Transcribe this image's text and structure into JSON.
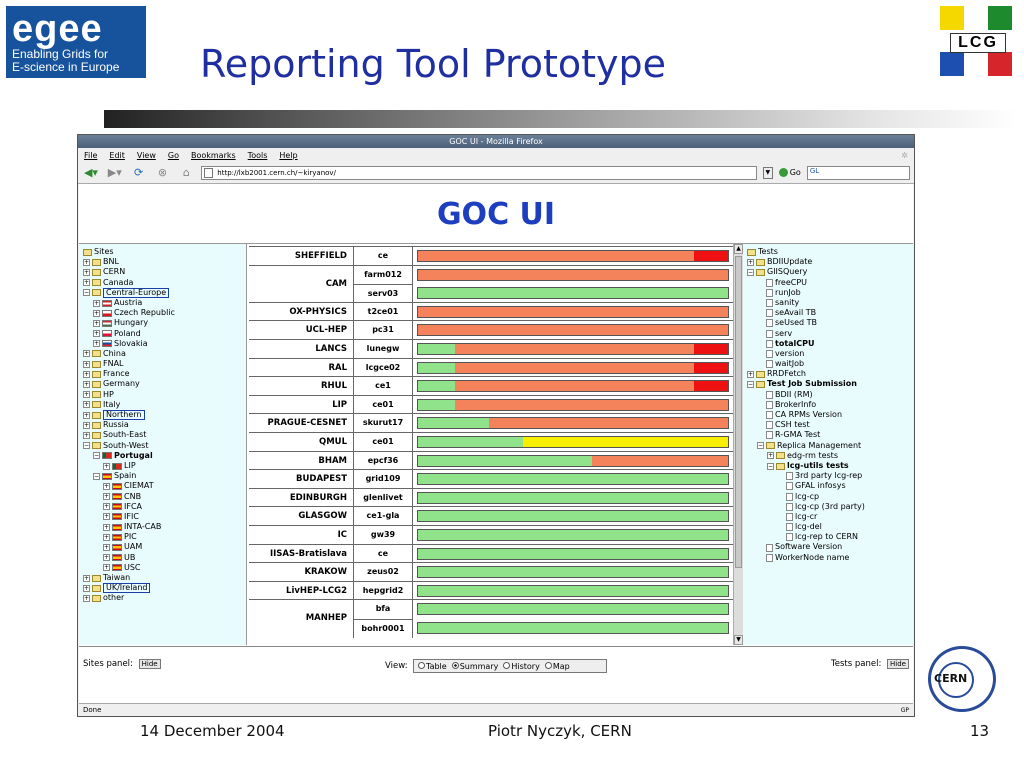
{
  "slide": {
    "egee_logo": {
      "word": "egee",
      "line1": "Enabling Grids for",
      "line2": "E-science in Europe"
    },
    "lcg_logo": "LCG",
    "title": "Reporting Tool Prototype",
    "footer_date": "14 December 2004",
    "footer_author": "Piotr Nyczyk, CERN",
    "footer_page": "13",
    "cern_logo": "CERN"
  },
  "browser": {
    "window_title": "GOC UI - Mozilla Firefox",
    "menu": [
      "File",
      "Edit",
      "View",
      "Go",
      "Bookmarks",
      "Tools",
      "Help"
    ],
    "url": "http://lxb2001.cern.ch/~kiryanov/",
    "go_label": "Go",
    "search_value": "GL",
    "status": "Done",
    "status_right": "GP"
  },
  "page": {
    "heading": "GOC UI",
    "sites_tree": [
      {
        "label": "Sites",
        "depth": 0,
        "exp": "",
        "icon": "folder"
      },
      {
        "label": "BNL",
        "depth": 0,
        "exp": "+",
        "icon": "folder"
      },
      {
        "label": "CERN",
        "depth": 0,
        "exp": "+",
        "icon": "folder"
      },
      {
        "label": "Canada",
        "depth": 0,
        "exp": "+",
        "icon": "folder"
      },
      {
        "label": "Central-Europe",
        "depth": 0,
        "exp": "-",
        "icon": "folder",
        "sel": true
      },
      {
        "label": "Austria",
        "depth": 1,
        "exp": "+",
        "icon": "flag-at"
      },
      {
        "label": "Czech Republic",
        "depth": 1,
        "exp": "+",
        "icon": "flag-cz"
      },
      {
        "label": "Hungary",
        "depth": 1,
        "exp": "+",
        "icon": "flag-hu"
      },
      {
        "label": "Poland",
        "depth": 1,
        "exp": "+",
        "icon": "flag-pl"
      },
      {
        "label": "Slovakia",
        "depth": 1,
        "exp": "+",
        "icon": "flag-sk"
      },
      {
        "label": "China",
        "depth": 0,
        "exp": "+",
        "icon": "folder"
      },
      {
        "label": "FNAL",
        "depth": 0,
        "exp": "+",
        "icon": "folder"
      },
      {
        "label": "France",
        "depth": 0,
        "exp": "+",
        "icon": "folder"
      },
      {
        "label": "Germany",
        "depth": 0,
        "exp": "+",
        "icon": "folder"
      },
      {
        "label": "HP",
        "depth": 0,
        "exp": "+",
        "icon": "folder"
      },
      {
        "label": "Italy",
        "depth": 0,
        "exp": "+",
        "icon": "folder"
      },
      {
        "label": "Northern",
        "depth": 0,
        "exp": "+",
        "icon": "folder",
        "sel": true
      },
      {
        "label": "Russia",
        "depth": 0,
        "exp": "+",
        "icon": "folder"
      },
      {
        "label": "South-East",
        "depth": 0,
        "exp": "+",
        "icon": "folder"
      },
      {
        "label": "South-West",
        "depth": 0,
        "exp": "-",
        "icon": "folder"
      },
      {
        "label": "Portugal",
        "depth": 1,
        "exp": "-",
        "icon": "flag-pt",
        "bold": true
      },
      {
        "label": "LIP",
        "depth": 2,
        "exp": "+",
        "icon": "flag-pt"
      },
      {
        "label": "Spain",
        "depth": 1,
        "exp": "-",
        "icon": "flag-es"
      },
      {
        "label": "CIEMAT",
        "depth": 2,
        "exp": "+",
        "icon": "flag-es"
      },
      {
        "label": "CNB",
        "depth": 2,
        "exp": "+",
        "icon": "flag-es"
      },
      {
        "label": "IFCA",
        "depth": 2,
        "exp": "+",
        "icon": "flag-es"
      },
      {
        "label": "IFIC",
        "depth": 2,
        "exp": "+",
        "icon": "flag-es"
      },
      {
        "label": "INTA-CAB",
        "depth": 2,
        "exp": "+",
        "icon": "flag-es"
      },
      {
        "label": "PIC",
        "depth": 2,
        "exp": "+",
        "icon": "flag-es"
      },
      {
        "label": "UAM",
        "depth": 2,
        "exp": "+",
        "icon": "flag-es"
      },
      {
        "label": "UB",
        "depth": 2,
        "exp": "+",
        "icon": "flag-es"
      },
      {
        "label": "USC",
        "depth": 2,
        "exp": "+",
        "icon": "flag-es"
      },
      {
        "label": "Taiwan",
        "depth": 0,
        "exp": "+",
        "icon": "folder"
      },
      {
        "label": "UK/Ireland",
        "depth": 0,
        "exp": "+",
        "icon": "folder",
        "sel": true
      },
      {
        "label": "other",
        "depth": 0,
        "exp": "+",
        "icon": "folder"
      }
    ],
    "tests_tree": [
      {
        "label": "Tests",
        "depth": 0,
        "exp": "",
        "icon": "folder"
      },
      {
        "label": "BDIIUpdate",
        "depth": 0,
        "exp": "+",
        "icon": "folder"
      },
      {
        "label": "GIISQuery",
        "depth": 0,
        "exp": "-",
        "icon": "folder"
      },
      {
        "label": "freeCPU",
        "depth": 1,
        "exp": "",
        "icon": "doc"
      },
      {
        "label": "runJob",
        "depth": 1,
        "exp": "",
        "icon": "doc"
      },
      {
        "label": "sanity",
        "depth": 1,
        "exp": "",
        "icon": "doc"
      },
      {
        "label": "seAvail TB",
        "depth": 1,
        "exp": "",
        "icon": "doc"
      },
      {
        "label": "seUsed TB",
        "depth": 1,
        "exp": "",
        "icon": "doc"
      },
      {
        "label": "serv",
        "depth": 1,
        "exp": "",
        "icon": "doc"
      },
      {
        "label": "totalCPU",
        "depth": 1,
        "exp": "",
        "icon": "doc",
        "bold": true
      },
      {
        "label": "version",
        "depth": 1,
        "exp": "",
        "icon": "doc"
      },
      {
        "label": "waitJob",
        "depth": 1,
        "exp": "",
        "icon": "doc"
      },
      {
        "label": "RRDFetch",
        "depth": 0,
        "exp": "+",
        "icon": "folder"
      },
      {
        "label": "Test Job Submission",
        "depth": 0,
        "exp": "-",
        "icon": "folder",
        "bold": true
      },
      {
        "label": "BDII (RM)",
        "depth": 1,
        "exp": "",
        "icon": "doc"
      },
      {
        "label": "BrokerInfo",
        "depth": 1,
        "exp": "",
        "icon": "doc"
      },
      {
        "label": "CA RPMs Version",
        "depth": 1,
        "exp": "",
        "icon": "doc"
      },
      {
        "label": "CSH test",
        "depth": 1,
        "exp": "",
        "icon": "doc"
      },
      {
        "label": "R-GMA Test",
        "depth": 1,
        "exp": "",
        "icon": "doc"
      },
      {
        "label": "Replica Management",
        "depth": 1,
        "exp": "-",
        "icon": "folder"
      },
      {
        "label": "edg-rm tests",
        "depth": 2,
        "exp": "+",
        "icon": "folder"
      },
      {
        "label": "lcg-utils tests",
        "depth": 2,
        "exp": "-",
        "icon": "folder",
        "bold": true
      },
      {
        "label": "3rd party lcg-rep",
        "depth": 3,
        "exp": "",
        "icon": "doc"
      },
      {
        "label": "GFAL infosys",
        "depth": 3,
        "exp": "",
        "icon": "doc"
      },
      {
        "label": "lcg-cp",
        "depth": 3,
        "exp": "",
        "icon": "doc"
      },
      {
        "label": "lcg-cp (3rd party)",
        "depth": 3,
        "exp": "",
        "icon": "doc"
      },
      {
        "label": "lcg-cr",
        "depth": 3,
        "exp": "",
        "icon": "doc"
      },
      {
        "label": "lcg-del",
        "depth": 3,
        "exp": "",
        "icon": "doc"
      },
      {
        "label": "lcg-rep to CERN",
        "depth": 3,
        "exp": "",
        "icon": "doc"
      },
      {
        "label": "Software Version",
        "depth": 1,
        "exp": "",
        "icon": "doc"
      },
      {
        "label": "WorkerNode name",
        "depth": 1,
        "exp": "",
        "icon": "doc"
      }
    ],
    "status_colors": {
      "ok": "#90e38a",
      "fail": "#f4825a",
      "error": "#ee1111",
      "warn": "#f8ee00"
    },
    "site_rows": [
      {
        "site": "SHEFFIELD",
        "nodes": [
          {
            "node": "ce",
            "segments": [
              [
                "fail",
                0.89
              ],
              [
                "error",
                0.11
              ]
            ]
          }
        ]
      },
      {
        "site": "CAM",
        "nodes": [
          {
            "node": "farm012",
            "segments": [
              [
                "fail",
                1
              ]
            ]
          },
          {
            "node": "serv03",
            "segments": [
              [
                "ok",
                1
              ]
            ]
          }
        ]
      },
      {
        "site": "OX-PHYSICS",
        "nodes": [
          {
            "node": "t2ce01",
            "segments": [
              [
                "fail",
                1
              ]
            ]
          }
        ]
      },
      {
        "site": "UCL-HEP",
        "nodes": [
          {
            "node": "pc31",
            "segments": [
              [
                "fail",
                1
              ]
            ]
          }
        ]
      },
      {
        "site": "LANCS",
        "nodes": [
          {
            "node": "lunegw",
            "segments": [
              [
                "ok",
                0.12
              ],
              [
                "fail",
                0.77
              ],
              [
                "error",
                0.11
              ]
            ]
          }
        ]
      },
      {
        "site": "RAL",
        "nodes": [
          {
            "node": "lcgce02",
            "segments": [
              [
                "ok",
                0.12
              ],
              [
                "fail",
                0.77
              ],
              [
                "error",
                0.11
              ]
            ]
          }
        ]
      },
      {
        "site": "RHUL",
        "nodes": [
          {
            "node": "ce1",
            "segments": [
              [
                "ok",
                0.12
              ],
              [
                "fail",
                0.77
              ],
              [
                "error",
                0.11
              ]
            ]
          }
        ]
      },
      {
        "site": "LIP",
        "nodes": [
          {
            "node": "ce01",
            "segments": [
              [
                "ok",
                0.12
              ],
              [
                "fail",
                0.88
              ]
            ]
          }
        ]
      },
      {
        "site": "PRAGUE-CESNET",
        "nodes": [
          {
            "node": "skurut17",
            "segments": [
              [
                "ok",
                0.23
              ],
              [
                "fail",
                0.77
              ]
            ]
          }
        ]
      },
      {
        "site": "QMUL",
        "nodes": [
          {
            "node": "ce01",
            "segments": [
              [
                "ok",
                0.34
              ],
              [
                "warn",
                0.66
              ]
            ]
          }
        ]
      },
      {
        "site": "BHAM",
        "nodes": [
          {
            "node": "epcf36",
            "segments": [
              [
                "ok",
                0.56
              ],
              [
                "fail",
                0.44
              ]
            ]
          }
        ]
      },
      {
        "site": "BUDAPEST",
        "nodes": [
          {
            "node": "grid109",
            "segments": [
              [
                "ok",
                1
              ]
            ]
          }
        ]
      },
      {
        "site": "EDINBURGH",
        "nodes": [
          {
            "node": "glenlivet",
            "segments": [
              [
                "ok",
                1
              ]
            ]
          }
        ]
      },
      {
        "site": "GLASGOW",
        "nodes": [
          {
            "node": "ce1-gla",
            "segments": [
              [
                "ok",
                1
              ]
            ]
          }
        ]
      },
      {
        "site": "IC",
        "nodes": [
          {
            "node": "gw39",
            "segments": [
              [
                "ok",
                1
              ]
            ]
          }
        ]
      },
      {
        "site": "IISAS-Bratislava",
        "nodes": [
          {
            "node": "ce",
            "segments": [
              [
                "ok",
                1
              ]
            ]
          }
        ]
      },
      {
        "site": "KRAKOW",
        "nodes": [
          {
            "node": "zeus02",
            "segments": [
              [
                "ok",
                1
              ]
            ]
          }
        ]
      },
      {
        "site": "LivHEP-LCG2",
        "nodes": [
          {
            "node": "hepgrid2",
            "segments": [
              [
                "ok",
                1
              ]
            ]
          }
        ]
      },
      {
        "site": "MANHEP",
        "nodes": [
          {
            "node": "bfa",
            "segments": [
              [
                "ok",
                1
              ]
            ]
          },
          {
            "node": "bohr0001",
            "segments": [
              [
                "ok",
                1
              ]
            ]
          }
        ]
      }
    ],
    "sites_panel_label": "Sites panel:",
    "tests_panel_label": "Tests panel:",
    "hide_label": "Hide",
    "view_label": "View:",
    "view_options": [
      "Table",
      "Summary",
      "History",
      "Map"
    ],
    "view_selected": "Summary"
  }
}
